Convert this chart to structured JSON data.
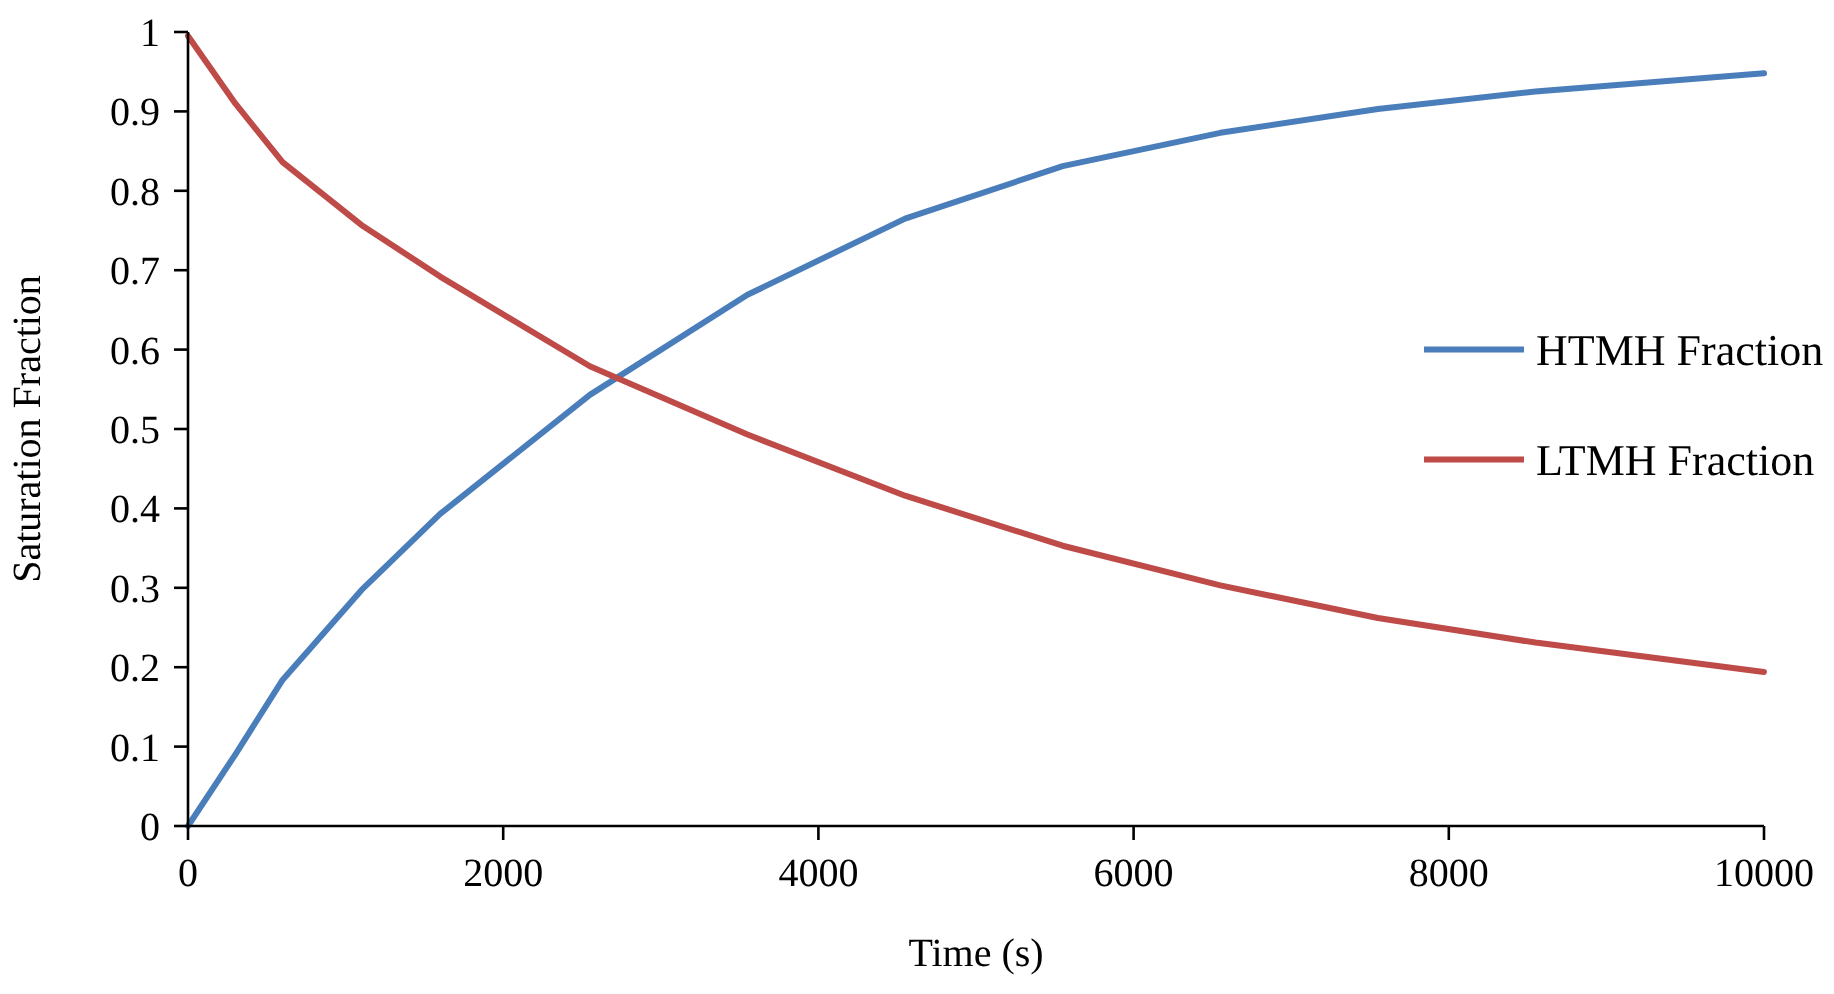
{
  "chart_data": {
    "type": "line",
    "xlabel": "Time (s)",
    "ylabel": "Saturation Fraction",
    "xlim": [
      0,
      10000
    ],
    "xticks": [
      0,
      2000,
      4000,
      6000,
      8000,
      10000
    ],
    "ylim": [
      0,
      1
    ],
    "yticks": [
      0,
      0.1,
      0.2,
      0.3,
      0.4,
      0.5,
      0.6,
      0.7,
      0.8,
      0.9,
      1
    ],
    "grid": false,
    "legend": "right",
    "marker": "none",
    "line_style": "solid",
    "series": [
      {
        "name": "HTMH Fraction",
        "color": "#4a7ebb",
        "x": [
          0,
          300,
          600,
          1100,
          1600,
          2550,
          3550,
          4550,
          5550,
          6550,
          7550,
          8550,
          10000
        ],
        "values": [
          0,
          0.09,
          0.184,
          0.297,
          0.393,
          0.543,
          0.669,
          0.765,
          0.831,
          0.873,
          0.903,
          0.925,
          0.948
        ]
      },
      {
        "name": "LTMH Fraction",
        "color": "#be4b48",
        "x": [
          0,
          300,
          600,
          1100,
          1600,
          2550,
          3550,
          4550,
          5550,
          6550,
          7550,
          8550,
          10000
        ],
        "values": [
          0.995,
          0.91,
          0.836,
          0.757,
          0.692,
          0.579,
          0.493,
          0.416,
          0.353,
          0.303,
          0.262,
          0.231,
          0.194
        ]
      }
    ]
  }
}
